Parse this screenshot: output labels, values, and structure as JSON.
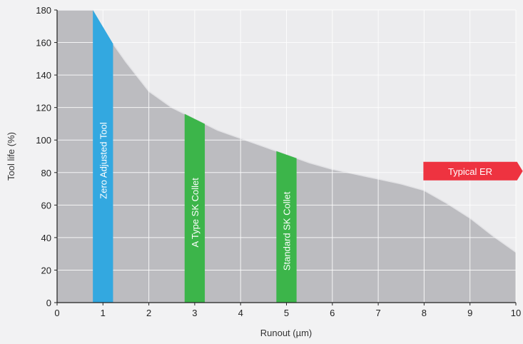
{
  "chart_data": {
    "type": "area",
    "title": "",
    "xlabel": "Runout (µm)",
    "ylabel": "Tool life (%)",
    "xlim": [
      0,
      10
    ],
    "ylim": [
      0,
      180
    ],
    "x_ticks": [
      0,
      1,
      2,
      3,
      4,
      5,
      6,
      7,
      8,
      9,
      10
    ],
    "y_ticks": [
      0,
      20,
      40,
      60,
      80,
      100,
      120,
      140,
      160,
      180
    ],
    "grid": true,
    "series": [
      {
        "x": [
          0,
          0.78,
          1.0,
          1.5,
          2.0,
          2.5,
          3.0,
          3.5,
          4.0,
          4.5,
          5.0,
          5.5,
          6.0,
          6.5,
          7.0,
          7.5,
          8.0,
          8.5,
          9.0,
          9.5,
          10.0
        ],
        "y": [
          180,
          180,
          168,
          148,
          130,
          120,
          113,
          106,
          101,
          96,
          91,
          86,
          82,
          79,
          76,
          73,
          69,
          61,
          52,
          41,
          31
        ]
      }
    ],
    "bands": [
      {
        "label": "Zero Adjusted Tool",
        "x_start": 0.78,
        "x_end": 1.22,
        "color": "#33a8e0"
      },
      {
        "label": "A Type SK Collet",
        "x_start": 2.78,
        "x_end": 3.22,
        "color": "#3cb54a"
      },
      {
        "label": "Standard SK Collet",
        "x_start": 4.78,
        "x_end": 5.22,
        "color": "#3cb54a"
      }
    ],
    "annotations": [
      {
        "label": "Typical ER",
        "x_start": 8.0,
        "x_end": 10.15,
        "y": 80,
        "color": "#ee3340"
      }
    ],
    "colors": {
      "area_fill": "#bcbcc0",
      "area_line": "#e2e2e5",
      "grid": "#ffffff",
      "axis": "#222222"
    }
  }
}
